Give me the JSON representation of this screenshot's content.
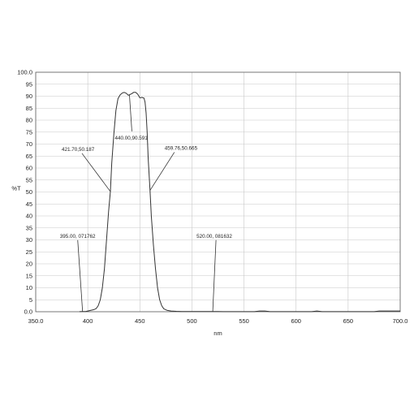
{
  "chart_data": {
    "type": "line",
    "title": "",
    "xlabel": "nm",
    "ylabel": "%T",
    "xlim": [
      350,
      700
    ],
    "ylim": [
      0,
      100
    ],
    "x_ticks": [
      350,
      400,
      450,
      500,
      550,
      600,
      650,
      700
    ],
    "x_tick_labels": [
      "350.0",
      "400",
      "450",
      "500",
      "550",
      "600",
      "650",
      "700.0"
    ],
    "y_ticks": [
      0,
      5,
      10,
      15,
      20,
      25,
      30,
      35,
      40,
      45,
      50,
      55,
      60,
      65,
      70,
      75,
      80,
      85,
      90,
      95,
      100
    ],
    "y_tick_labels": [
      "0.0",
      "5",
      "10",
      "15",
      "20",
      "25",
      "30",
      "35",
      "40",
      "45",
      "50",
      "55",
      "60",
      "65",
      "70",
      "75",
      "80",
      "85",
      "90",
      "95",
      "100.0"
    ],
    "grid": true,
    "series": [
      {
        "color": "#333333",
        "x": [
          392,
          395,
          398,
          400,
          403,
          406,
          408,
          410,
          412,
          414,
          416,
          418,
          420,
          421.7,
          423,
          425,
          427,
          429,
          431,
          433,
          435,
          437,
          439,
          440,
          442,
          444,
          446,
          448,
          450,
          452,
          454,
          455,
          456,
          457,
          458,
          459.76,
          461,
          463,
          465,
          467,
          469,
          471,
          473,
          476,
          480,
          485,
          490,
          495,
          500,
          505,
          510,
          515,
          520,
          525,
          530,
          540,
          560,
          565,
          570,
          575,
          580,
          600,
          615,
          620,
          625,
          630,
          650,
          675,
          680,
          690,
          700
        ],
        "y": [
          0.05,
          0.07,
          0.1,
          0.3,
          0.6,
          0.9,
          1.3,
          2.5,
          5,
          10,
          18,
          30,
          42,
          50.187,
          62,
          74,
          84,
          89,
          90.5,
          91.3,
          91.6,
          91.2,
          90.4,
          90.591,
          91,
          91.6,
          91.6,
          90.8,
          89.3,
          89.5,
          89.2,
          87.5,
          83,
          75,
          64,
          50.665,
          40,
          28,
          18,
          10,
          5,
          2.5,
          1.2,
          0.6,
          0.3,
          0.15,
          0.1,
          0.08,
          0.08,
          0.08,
          0.1,
          0.09,
          0.081632,
          0.08,
          0.06,
          0.05,
          0.05,
          0.3,
          0.3,
          0.05,
          0.05,
          0.05,
          0.05,
          0.3,
          0.05,
          0.05,
          0.05,
          0.05,
          0.3,
          0.3,
          0.3
        ]
      }
    ],
    "annotations": [
      {
        "text": "395.00, 071762",
        "x": 395.0,
        "y": 0.071762
      },
      {
        "text": "421.70,50.187",
        "x": 421.7,
        "y": 50.187
      },
      {
        "text": "440.00,90.591",
        "x": 440.0,
        "y": 90.591
      },
      {
        "text": "459.76,50.665",
        "x": 459.76,
        "y": 50.665
      },
      {
        "text": "520.00, 081632",
        "x": 520.0,
        "y": 0.081632
      }
    ]
  }
}
